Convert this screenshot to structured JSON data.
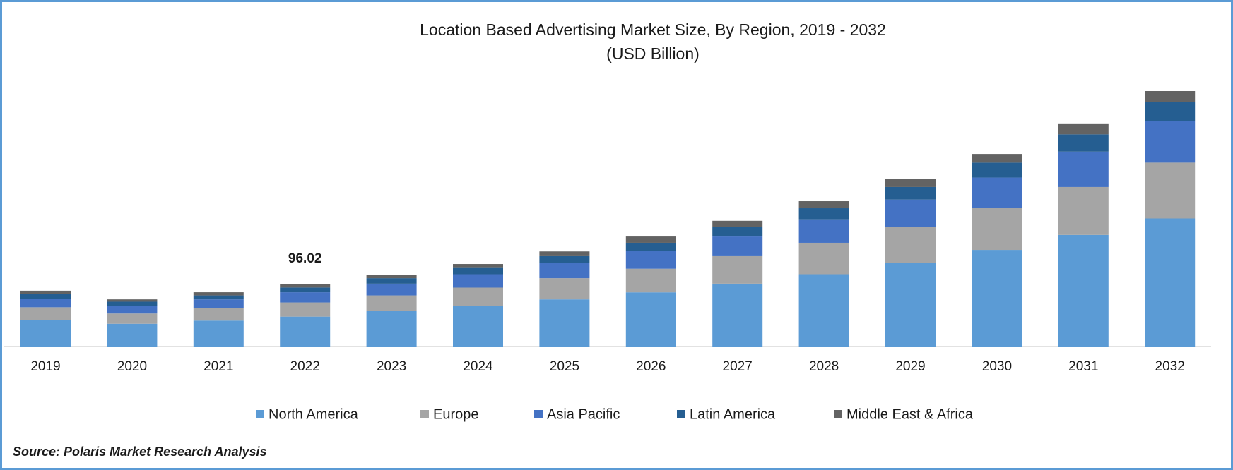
{
  "chart_data": {
    "type": "stacked_bar",
    "title": "Location Based Advertising Market Size, By Region, 2019 - 2032",
    "subtitle": "(USD Billion)",
    "source": "Source: Polaris Market Research Analysis",
    "categories": [
      "2019",
      "2020",
      "2021",
      "2022",
      "2023",
      "2024",
      "2025",
      "2026",
      "2027",
      "2028",
      "2029",
      "2030",
      "2031",
      "2032"
    ],
    "series": [
      {
        "name": "North America",
        "color": "#5b9bd5",
        "values": [
          41.3,
          35.2,
          40.1,
          46.2,
          54.7,
          63.2,
          72.9,
          83.8,
          97.2,
          111.8,
          128.8,
          149.4,
          172.5,
          198.0
        ]
      },
      {
        "name": "Europe",
        "color": "#a5a5a5",
        "values": [
          19.4,
          15.8,
          19.4,
          21.9,
          24.3,
          27.9,
          32.8,
          36.5,
          42.5,
          48.6,
          55.9,
          64.4,
          74.1,
          86.3
        ]
      },
      {
        "name": "Asia Pacific",
        "color": "#4472c4",
        "values": [
          13.4,
          12.2,
          13.4,
          15.8,
          18.2,
          20.7,
          23.1,
          27.9,
          30.4,
          35.2,
          42.5,
          47.4,
          54.7,
          64.4
        ]
      },
      {
        "name": "Latin America",
        "color": "#255e91",
        "values": [
          7.3,
          6.1,
          6.1,
          7.3,
          8.5,
          9.7,
          10.9,
          12.2,
          14.6,
          18.2,
          19.4,
          23.1,
          26.7,
          29.2
        ]
      },
      {
        "name": "Middle East & Africa",
        "color": "#636363",
        "values": [
          4.9,
          3.6,
          4.9,
          4.82,
          4.9,
          6.1,
          7.3,
          9.7,
          9.7,
          10.9,
          12.2,
          13.4,
          15.8,
          17.0
        ]
      }
    ],
    "annotations": [
      {
        "x": "2022",
        "text": "96.02"
      }
    ],
    "legend": "bottom"
  }
}
